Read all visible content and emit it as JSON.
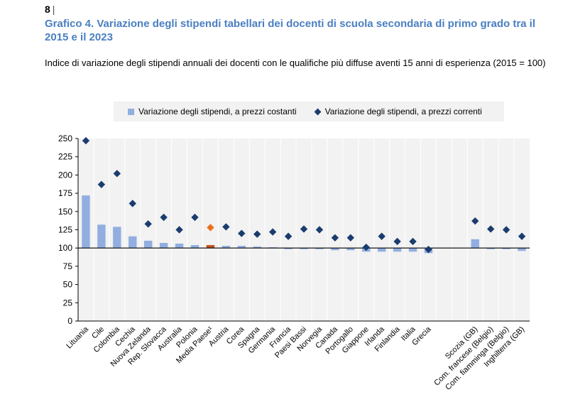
{
  "page": {
    "number": "8",
    "separator": "|"
  },
  "header": {
    "title": "Grafico  4. Variazione degli stipendi tabellari dei docenti di scuola secondaria di primo grado tra il 2015 e il 2023",
    "subtitle": "Indice di variazione degli stipendi annuali dei docenti con le qualifiche più diffuse aventi 15 anni di esperienza (2015 = 100)"
  },
  "legend": {
    "constant": "Variazione degli stipendi, a prezzi costanti",
    "current": "Variazione degli stipendi, a prezzi correnti"
  },
  "colors": {
    "bar": "#92aee0",
    "diamond": "#1a3c6e",
    "highlight": "#e8701a",
    "highlight_bar": "#c0501a",
    "grid_bg": "#f2f2f2",
    "title": "#4a7fc1"
  },
  "chart_data": {
    "type": "bar",
    "title": "Grafico 4",
    "xlabel": "",
    "ylabel": "",
    "ylim": [
      0,
      250
    ],
    "yticks": [
      0,
      25,
      50,
      75,
      100,
      125,
      150,
      175,
      200,
      225,
      250
    ],
    "baseline": 100,
    "highlight_category": "Media Paese¹",
    "categories": [
      "Lituania",
      "Cile",
      "Colombia",
      "Cechia",
      "Nuova Zelanda",
      "Rep. Slovacca",
      "Australia",
      "Polonia",
      "Media Paese¹",
      "Austria",
      "Corea",
      "Spagna",
      "Germania",
      "Francia",
      "Paesi Bassi",
      "Norvegia",
      "Canada",
      "Portogallo",
      "Giappone",
      "Irlanda",
      "Finlandia",
      "Italia",
      "Grecia",
      "",
      "",
      "Scozia (GB)",
      "Com. francese (Belgio)",
      "Com. fiamminga (Belgio)",
      "Inghilterra (GB)"
    ],
    "series": [
      {
        "name": "Variazione degli stipendi, a prezzi costanti",
        "kind": "bar",
        "values": [
          172,
          132,
          129,
          116,
          110,
          107,
          106,
          104,
          104,
          103,
          103,
          102,
          101,
          100,
          100,
          100,
          97,
          97,
          95,
          95,
          95,
          95,
          93,
          null,
          null,
          112,
          100,
          100,
          96
        ]
      },
      {
        "name": "Variazione degli stipendi, a prezzi correnti",
        "kind": "diamond",
        "values": [
          247,
          187,
          202,
          161,
          133,
          142,
          125,
          142,
          128,
          129,
          120,
          119,
          122,
          116,
          126,
          125,
          114,
          114,
          101,
          116,
          109,
          109,
          98,
          null,
          null,
          137,
          126,
          125,
          116
        ]
      }
    ]
  }
}
